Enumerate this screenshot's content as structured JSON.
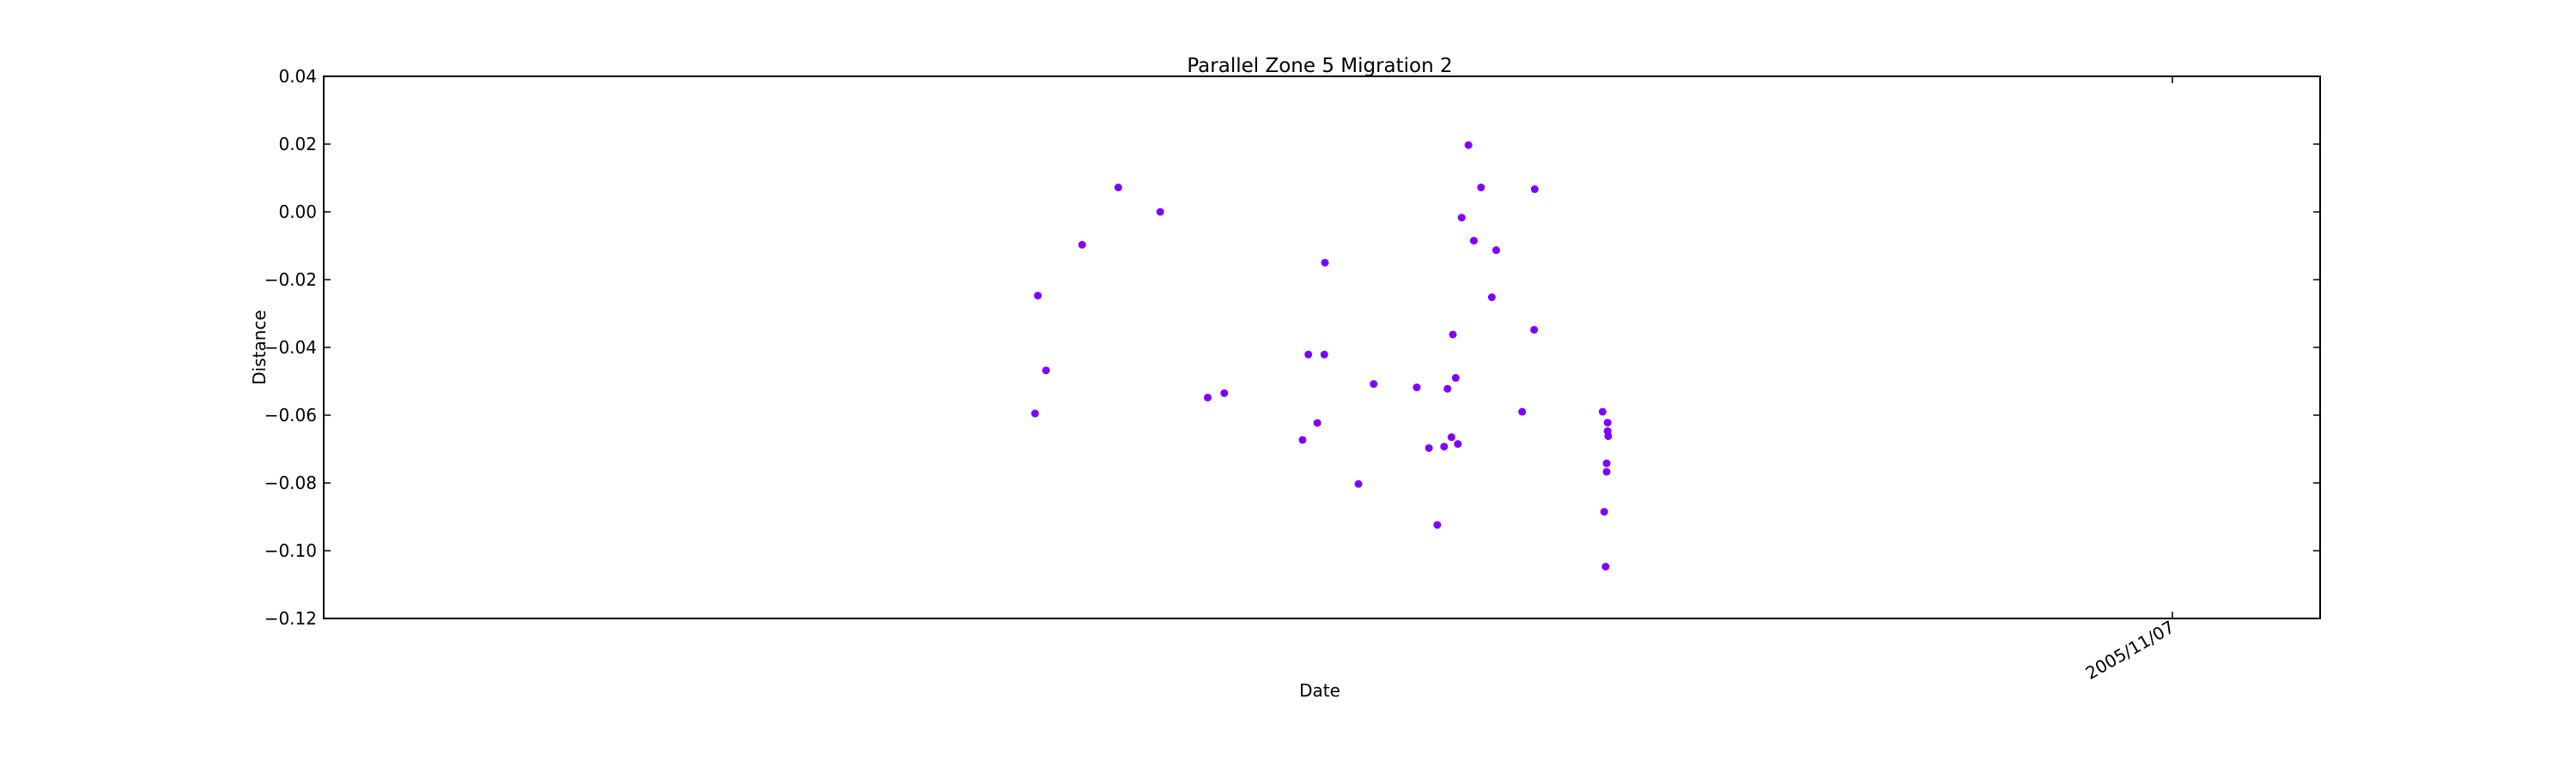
{
  "chart_data": {
    "type": "scatter",
    "title": "Parallel Zone 5 Migration 2",
    "xlabel": "Date",
    "ylabel": "Distance",
    "ylim": [
      -0.12,
      0.04
    ],
    "yticks": [
      0.04,
      0.02,
      0.0,
      -0.02,
      -0.04,
      -0.06,
      -0.08,
      -0.1,
      -0.12
    ],
    "ytick_labels": [
      "0.04",
      "0.02",
      "0.00",
      "−0.02",
      "−0.04",
      "−0.06",
      "−0.08",
      "−0.10",
      "−0.12"
    ],
    "xtick_label": "2005/11/07",
    "grid": false,
    "marker_color": "#8000ff",
    "series": [
      {
        "x": [
          0.3563,
          0.3577,
          0.3618,
          0.3799,
          0.398,
          0.419,
          0.4428,
          0.4511,
          0.4903,
          0.4932,
          0.4977,
          0.5012,
          0.5015,
          0.5183,
          0.5259,
          0.5475,
          0.5536,
          0.5578,
          0.5612,
          0.5629,
          0.5649,
          0.5656,
          0.567,
          0.5681,
          0.57,
          0.5734,
          0.5761,
          0.5797,
          0.5851,
          0.5873,
          0.6003,
          0.6063,
          0.6066,
          0.6406,
          0.6414,
          0.6421,
          0.6426,
          0.6426,
          0.6431,
          0.6431,
          0.6434
        ],
        "y": [
          -0.0595,
          -0.0247,
          -0.0468,
          -0.0097,
          0.0072,
          0.0,
          -0.0548,
          -0.0535,
          -0.0673,
          -0.0421,
          -0.0623,
          -0.0421,
          -0.015,
          -0.0803,
          -0.0508,
          -0.0518,
          -0.0697,
          -0.0924,
          -0.0693,
          -0.0522,
          -0.0665,
          -0.0362,
          -0.049,
          -0.0685,
          -0.0017,
          0.0197,
          -0.0085,
          0.0072,
          -0.0252,
          -0.0113,
          -0.059,
          -0.0348,
          0.0067,
          -0.059,
          -0.0885,
          -0.1047,
          -0.0767,
          -0.0742,
          -0.0622,
          -0.0647,
          -0.0662
        ]
      }
    ]
  }
}
